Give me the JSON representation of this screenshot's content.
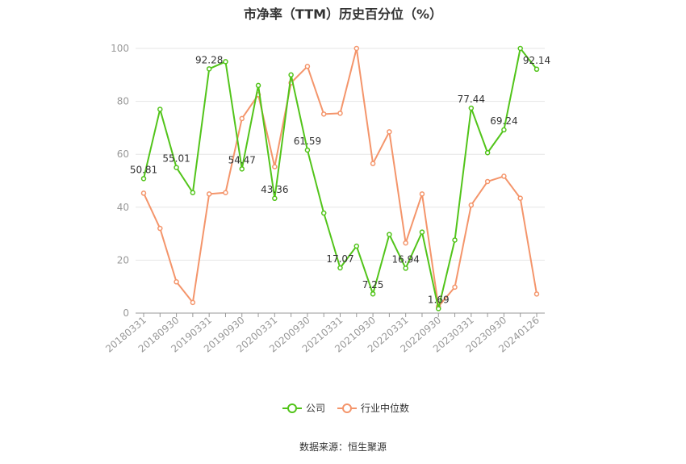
{
  "chart_data": {
    "type": "line",
    "title": "市净率（TTM）历史百分位（%）",
    "xlabel": "",
    "ylabel": "",
    "ylim": [
      0,
      100
    ],
    "yticks": [
      0,
      20,
      40,
      60,
      80,
      100
    ],
    "grid": true,
    "legend_position": "bottom",
    "x_labels": [
      "20180331",
      "20180930",
      "20190331",
      "20190930",
      "20200331",
      "20200930",
      "20210331",
      "20210930",
      "20220331",
      "20220930",
      "20230331",
      "20230930",
      "20240126"
    ],
    "x_label_positions": [
      0,
      2,
      4,
      6,
      8,
      10,
      12,
      14,
      16,
      18,
      20,
      22,
      24
    ],
    "series": [
      {
        "name": "公司",
        "color": "#52c41a",
        "values": [
          50.81,
          77,
          55.01,
          45.5,
          92.28,
          95,
          54.47,
          86,
          43.36,
          90,
          61.59,
          37.8,
          17.07,
          25.3,
          7.25,
          29.7,
          16.94,
          30.6,
          1.69,
          27.6,
          77.44,
          60.6,
          69.24,
          100,
          92.14
        ],
        "data_labels": [
          {
            "index": 0,
            "text": "50.81"
          },
          {
            "index": 2,
            "text": "55.01"
          },
          {
            "index": 4,
            "text": "92.28"
          },
          {
            "index": 6,
            "text": "54.47"
          },
          {
            "index": 8,
            "text": "43.36"
          },
          {
            "index": 10,
            "text": "61.59"
          },
          {
            "index": 12,
            "text": "17.07"
          },
          {
            "index": 14,
            "text": "7.25"
          },
          {
            "index": 16,
            "text": "16.94"
          },
          {
            "index": 18,
            "text": "1.69"
          },
          {
            "index": 20,
            "text": "77.44"
          },
          {
            "index": 22,
            "text": "69.24"
          },
          {
            "index": 24,
            "text": "92.14"
          }
        ]
      },
      {
        "name": "行业中位数",
        "color": "#f4956b",
        "values": [
          45.3,
          32,
          11.8,
          4,
          45,
          45.5,
          73.5,
          82.5,
          55.3,
          87,
          93.2,
          75.2,
          75.5,
          100,
          56.5,
          68.5,
          26.5,
          45,
          2.5,
          9.8,
          40.8,
          49.7,
          51.7,
          43.4,
          7.2
        ]
      }
    ]
  },
  "source": "数据来源：恒生聚源"
}
